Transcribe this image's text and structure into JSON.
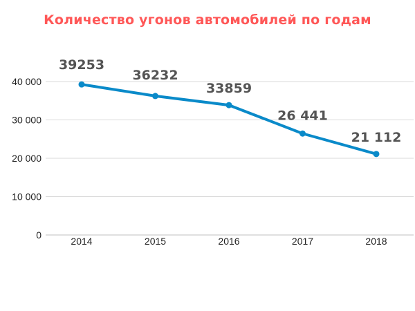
{
  "chart_data": {
    "type": "line",
    "title": "Количество угонов автомобилей по годам",
    "categories": [
      "2014",
      "2015",
      "2016",
      "2017",
      "2018"
    ],
    "series": [
      {
        "values": [
          39253,
          36232,
          33859,
          26441,
          21112
        ],
        "color": "#0a8ac9"
      }
    ],
    "data_labels": [
      "39253",
      "36232",
      "33859",
      "26 441",
      "21 112"
    ],
    "y_ticks": [
      0,
      10000,
      20000,
      30000,
      40000
    ],
    "y_tick_labels": [
      "0",
      "10 000",
      "20 000",
      "30 000",
      "40 000"
    ],
    "ylim": [
      0,
      40000
    ],
    "grid": true,
    "gridline_color": "#d9d9d9",
    "title_color": "#ff5757",
    "label_color": "#545454",
    "xlabel": "",
    "ylabel": ""
  }
}
